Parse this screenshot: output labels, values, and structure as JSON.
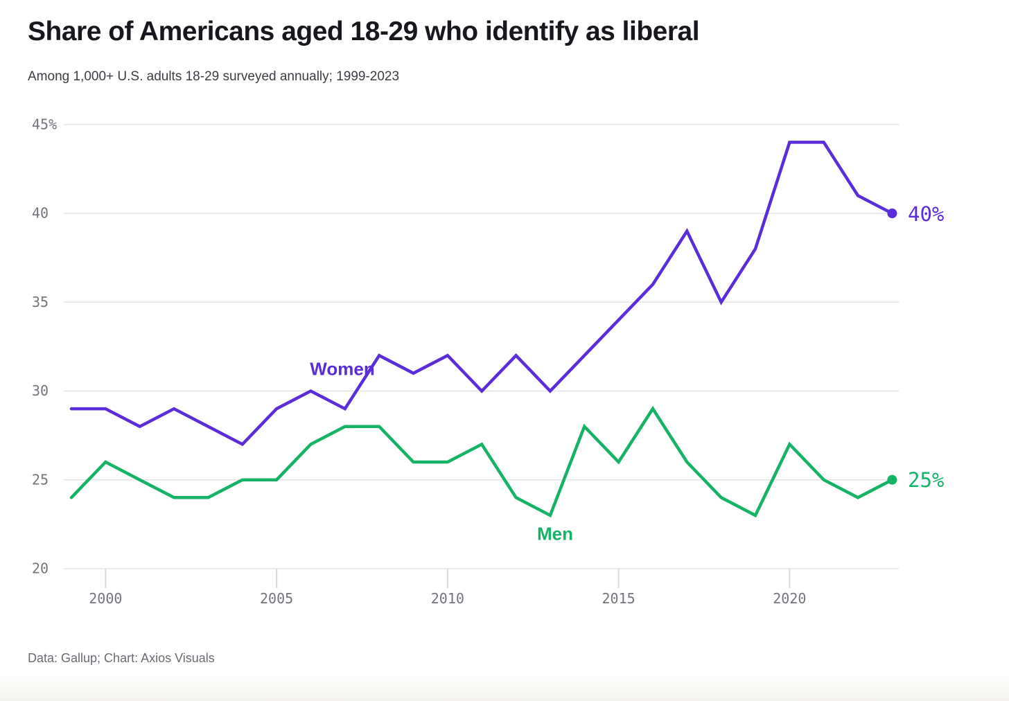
{
  "chart_data": {
    "type": "line",
    "title": "Share of Americans aged 18-29 who identify as liberal",
    "subtitle": "Among 1,000+ U.S. adults 18-29 surveyed annually; 1999-2023",
    "source": "Data: Gallup; Chart: Axios Visuals",
    "x": [
      1999,
      2000,
      2001,
      2002,
      2003,
      2004,
      2005,
      2006,
      2007,
      2008,
      2009,
      2010,
      2011,
      2012,
      2013,
      2014,
      2015,
      2016,
      2017,
      2018,
      2019,
      2020,
      2021,
      2022,
      2023
    ],
    "xlim": [
      1999,
      2023
    ],
    "ylim": [
      20,
      45
    ],
    "grid": "horizontal",
    "legend_position": "inline-labels-on-lines",
    "xticks": [
      "2000",
      "2005",
      "2010",
      "2015",
      "2020"
    ],
    "yticks": [
      {
        "value": 45,
        "label": "45%"
      },
      {
        "value": 40,
        "label": "40"
      },
      {
        "value": 35,
        "label": "35"
      },
      {
        "value": 30,
        "label": "30"
      },
      {
        "value": 25,
        "label": "25"
      },
      {
        "value": 20,
        "label": "20"
      }
    ],
    "series": [
      {
        "name": "Women",
        "color": "#5b2cd9",
        "end_label": "40%",
        "values": [
          29,
          29,
          28,
          29,
          28,
          27,
          29,
          30,
          29,
          32,
          31,
          32,
          30,
          32,
          30,
          32,
          34,
          36,
          39,
          35,
          38,
          44,
          44,
          41,
          40
        ]
      },
      {
        "name": "Men",
        "color": "#16b266",
        "end_label": "25%",
        "values": [
          24,
          26,
          25,
          24,
          24,
          25,
          25,
          27,
          28,
          28,
          26,
          26,
          27,
          24,
          23,
          28,
          26,
          29,
          26,
          24,
          23,
          27,
          25,
          24,
          25
        ]
      }
    ]
  },
  "colors": {
    "women_line": "#5b2cd9",
    "men_line": "#16b266",
    "gridline": "#e2e2e6",
    "tick_mark": "#d8d8dc",
    "axis_text": "#74747c",
    "title_text": "#17171d",
    "subtitle_text": "#3c3c43",
    "source_text": "#6a6a72"
  }
}
